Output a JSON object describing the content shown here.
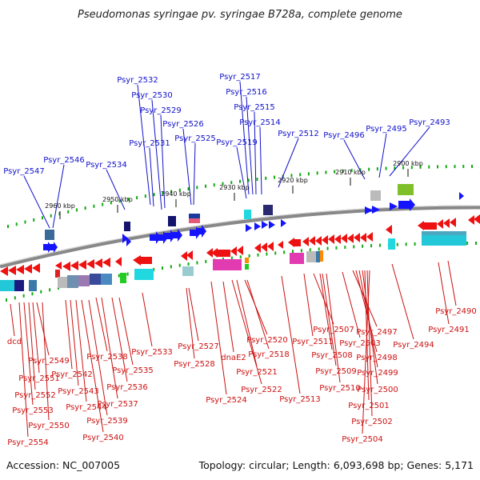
{
  "title": "Pseudomonas syringae pv. syringae B728a, complete genome",
  "footer": {
    "accession": "Accession: NC_007005",
    "topology": "Topology: circular; Length: 6,093,698 bp; Genes: 5,171"
  },
  "ticks": [
    "2960 kbp",
    "2950 kbp",
    "2940 kbp",
    "2930 kbp",
    "2920 kbp",
    "2910 kbp",
    "2900 kbp"
  ],
  "colors": {
    "forward": "#1414ff",
    "reverse": "#ee1111",
    "backbone": "#888888",
    "tick": "#11aa11"
  },
  "forward_labels": [
    "Psyr_2547",
    "Psyr_2546",
    "Psyr_2534",
    "Psyr_2532",
    "Psyr_2530",
    "Psyr_2529",
    "Psyr_2531",
    "Psyr_2526",
    "Psyr_2525",
    "Psyr_2517",
    "Psyr_2516",
    "Psyr_2515",
    "Psyr_2514",
    "Psyr_2519",
    "Psyr_2512",
    "Psyr_2496",
    "Psyr_2495",
    "Psyr_2493"
  ],
  "reverse_labels": [
    "dcd",
    "Psyr_2549",
    "Psyr_2551",
    "Psyr_2552",
    "Psyr_2553",
    "Psyr_2554",
    "Psyr_2550",
    "Psyr_2542",
    "Psyr_2543",
    "Psyr_2544",
    "Psyr_2538",
    "Psyr_2539",
    "Psyr_2540",
    "Psyr_2537",
    "Psyr_2536",
    "Psyr_2535",
    "Psyr_2533",
    "Psyr_2527",
    "Psyr_2528",
    "Psyr_2524",
    "dnaE2",
    "Psyr_2520",
    "Psyr_2518",
    "Psyr_2521",
    "Psyr_2522",
    "Psyr_2513",
    "Psyr_2511",
    "Psyr_2507",
    "Psyr_2508",
    "Psyr_2509",
    "Psyr_2510",
    "Psyr_2503",
    "Psyr_2497",
    "Psyr_2498",
    "Psyr_2499",
    "Psyr_2500",
    "Psyr_2501",
    "Psyr_2502",
    "Psyr_2504",
    "Psyr_2494",
    "Psyr_2491",
    "Psyr_2490"
  ]
}
